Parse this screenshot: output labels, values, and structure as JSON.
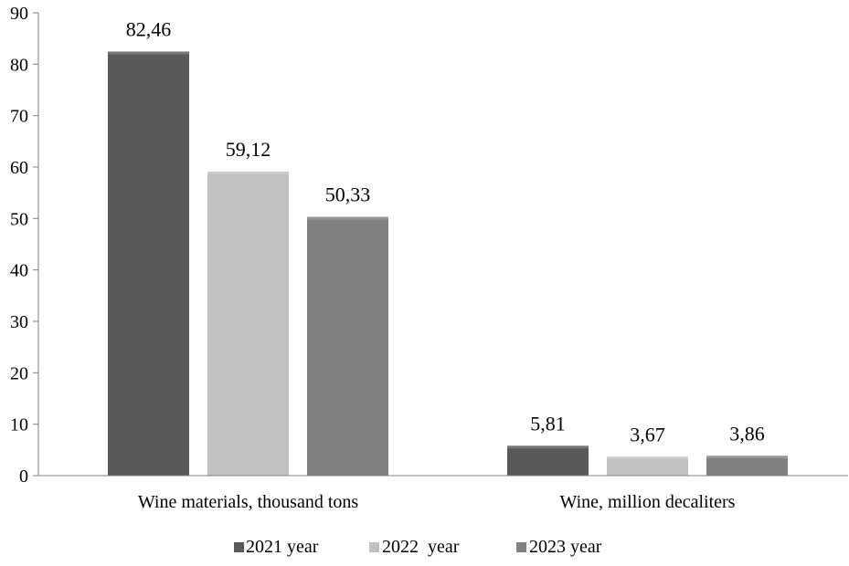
{
  "chart_data": {
    "type": "bar",
    "categories": [
      "Wine materials, thousand tons",
      "Wine, million decaliters"
    ],
    "series": [
      {
        "name": "2021 year",
        "values": [
          82.46,
          5.81
        ],
        "labels": [
          "82,46",
          "5,81"
        ],
        "color": "#595959"
      },
      {
        "name": "2022  year",
        "values": [
          59.12,
          3.67
        ],
        "labels": [
          "59,12",
          "3,67"
        ],
        "color": "#bfbfbf"
      },
      {
        "name": "2023 year",
        "values": [
          50.33,
          3.86
        ],
        "labels": [
          "50,33",
          "3,86"
        ],
        "color": "#808080"
      }
    ],
    "ylim": [
      0,
      90
    ],
    "yticks": [
      0,
      10,
      20,
      30,
      40,
      50,
      60,
      70,
      80,
      90
    ],
    "grid": false,
    "legend_position": "bottom"
  }
}
